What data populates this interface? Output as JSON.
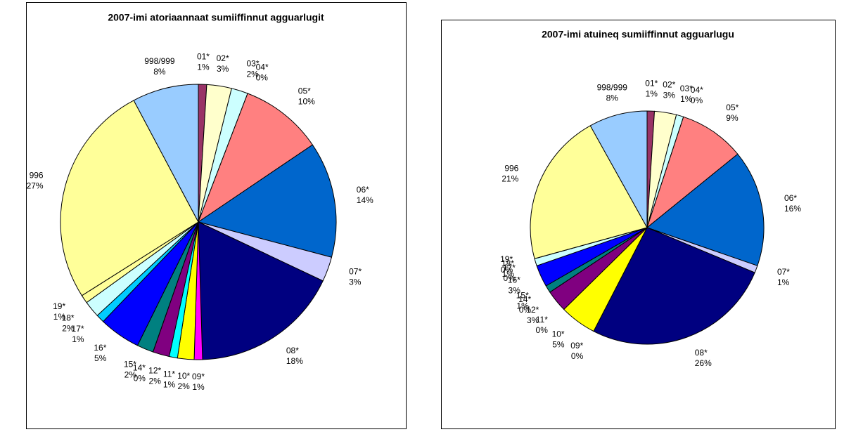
{
  "chart_data": [
    {
      "type": "pie",
      "title": "2007-imi atoriaannaat sumiiffinnut agguarlugit",
      "categories": [
        "01*",
        "02*",
        "03*",
        "04*",
        "05*",
        "06*",
        "07*",
        "08*",
        "09*",
        "10*",
        "11*",
        "12*",
        "14*",
        "15*",
        "16*",
        "17*",
        "18*",
        "19*",
        "996",
        "998/999"
      ],
      "values": [
        1,
        3,
        2,
        0,
        10,
        14,
        3,
        18,
        1,
        2,
        1,
        2,
        0,
        2,
        5,
        1,
        2,
        1,
        27,
        8
      ],
      "value_labels": [
        "1%",
        "3%",
        "2%",
        "0%",
        "10%",
        "14%",
        "3%",
        "18%",
        "1%",
        "2%",
        "1%",
        "2%",
        "0%",
        "2%",
        "5%",
        "1%",
        "2%",
        "1%",
        "27%",
        "8%"
      ],
      "colors": [
        "#993366",
        "#FFFFCC",
        "#CCFFFF",
        "#660066",
        "#FF8080",
        "#0066CC",
        "#CCCCFF",
        "#000080",
        "#FF00FF",
        "#FFFF00",
        "#00FFFF",
        "#800080",
        "#CCFFCC",
        "#008080",
        "#0000FF",
        "#00CCFF",
        "#CCFFFF",
        "#FFFF99",
        "#FFFF99",
        "#99CCFF"
      ]
    },
    {
      "type": "pie",
      "title": "2007-imi atuineq sumiiffinnut agguarlugu",
      "categories": [
        "01*",
        "02*",
        "03*",
        "04*",
        "05*",
        "06*",
        "07*",
        "08*",
        "09*",
        "10*",
        "11*",
        "12*",
        "14*",
        "15*",
        "16*",
        "17*",
        "18*",
        "19*",
        "996",
        "998/999"
      ],
      "values": [
        1,
        3,
        1,
        0,
        9,
        16,
        1,
        26,
        0,
        5,
        0,
        3,
        0,
        1,
        3,
        0,
        1,
        0,
        21,
        8
      ],
      "value_labels": [
        "1%",
        "3%",
        "1%",
        "0%",
        "9%",
        "16%",
        "1%",
        "26%",
        "0%",
        "5%",
        "0%",
        "3%",
        "0%",
        "1%",
        "3%",
        "0%",
        "1%",
        "0%",
        "21%",
        "8%"
      ],
      "colors": [
        "#993366",
        "#FFFFCC",
        "#CCFFFF",
        "#660066",
        "#FF8080",
        "#0066CC",
        "#CCCCFF",
        "#000080",
        "#FF00FF",
        "#FFFF00",
        "#00FFFF",
        "#800080",
        "#CCFFCC",
        "#008080",
        "#0000FF",
        "#00CCFF",
        "#CCFFFF",
        "#FFFF99",
        "#FFFF99",
        "#99CCFF"
      ]
    }
  ]
}
